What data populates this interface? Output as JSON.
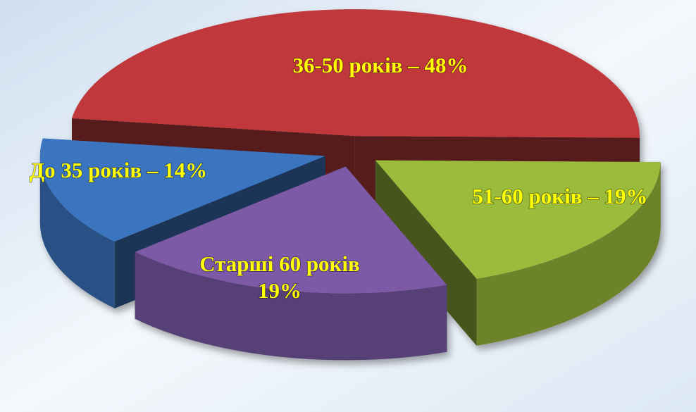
{
  "chart_data": {
    "type": "pie3d",
    "values": [
      48,
      19,
      19,
      14
    ],
    "value_labels": [
      [
        "36-50 років – 48%"
      ],
      [
        "51-60 років – 19%"
      ],
      [
        "Старші 60 років",
        "19%"
      ],
      [
        "До 35 років – 14%"
      ]
    ],
    "colors": [
      "#c0393b",
      "#9bbb3c",
      "#7b5aa6",
      "#3b74bf"
    ]
  }
}
